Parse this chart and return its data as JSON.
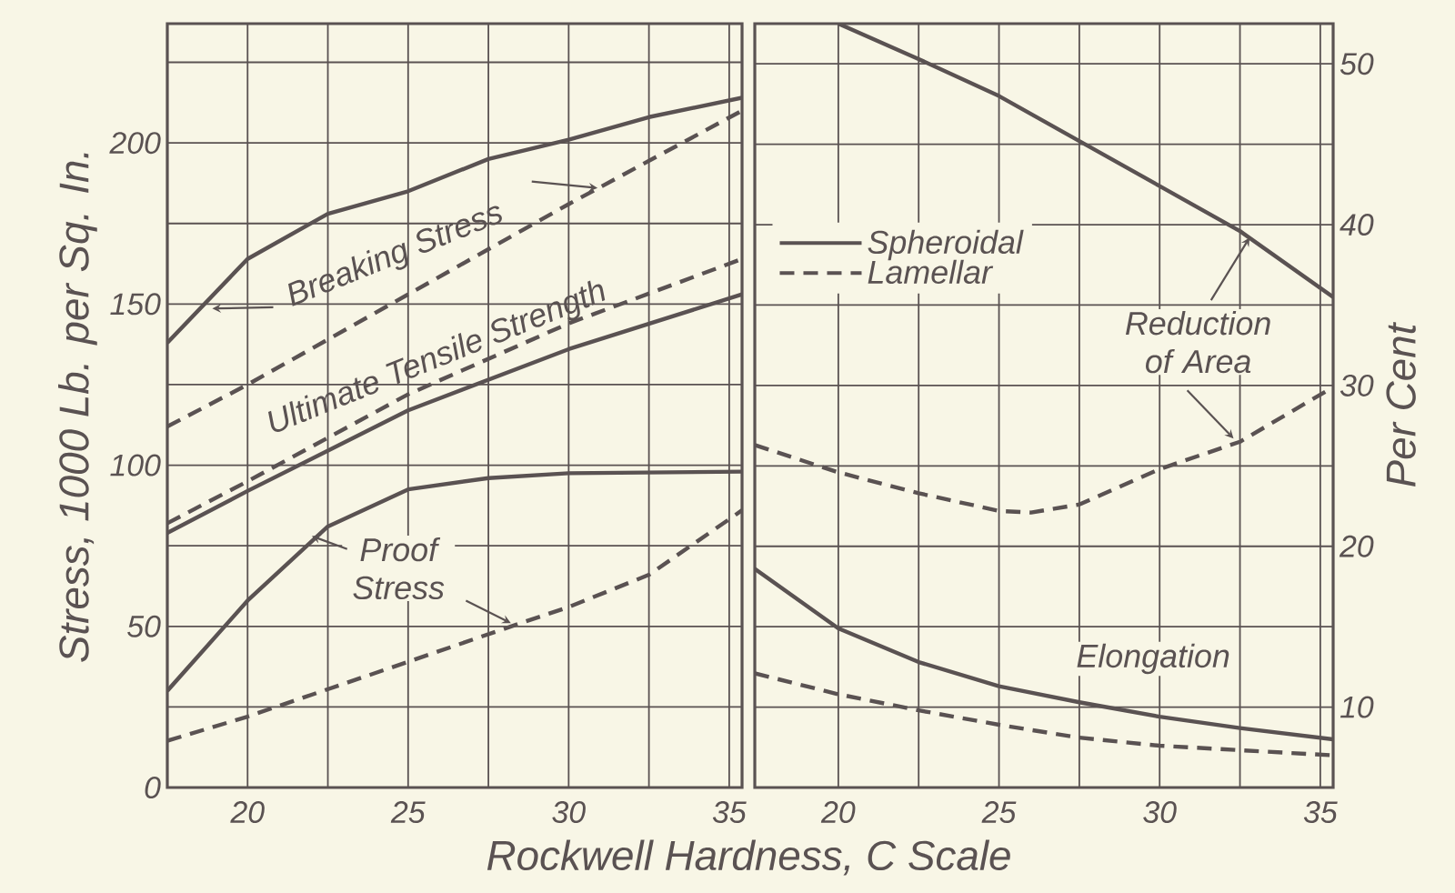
{
  "chart_data": [
    {
      "type": "line",
      "xlabel": "Rockwell Hardness, C Scale",
      "ylabel": "Stress, 1000 Lb. per Sq. In.",
      "xlim": [
        17.5,
        35.4
      ],
      "ylim": [
        0,
        237
      ],
      "xticks": [
        20,
        {
          "value": 22.5,
          "label": null
        },
        25,
        {
          "value": 27.5,
          "label": null
        },
        30,
        {
          "value": 32.5,
          "label": null
        },
        35
      ],
      "yticks": [
        0,
        {
          "value": 25,
          "label": null
        },
        50,
        {
          "value": 75,
          "label": null
        },
        100,
        {
          "value": 125,
          "label": null
        },
        150,
        {
          "value": 175,
          "label": null
        },
        200,
        {
          "value": 225,
          "label": null
        }
      ],
      "grid": true,
      "marker": "none",
      "annotations": [
        "Breaking Stress",
        "Ultimate Tensile Strength",
        "Proof Stress"
      ],
      "series": [
        {
          "color": "#5a5252",
          "line_style": "solid",
          "x": [
            17.5,
            20,
            22.5,
            25,
            27.5,
            30,
            32.5,
            35.4
          ],
          "values": [
            138,
            164,
            178,
            185,
            195,
            201,
            208,
            214
          ]
        },
        {
          "color": "#5a5252",
          "line_style": "dashed",
          "x": [
            17.5,
            20,
            25,
            30,
            35.4
          ],
          "values": [
            112,
            125,
            153,
            181,
            210
          ]
        },
        {
          "color": "#5a5252",
          "line_style": "solid",
          "x": [
            17.5,
            20,
            25,
            30,
            35.4
          ],
          "values": [
            79,
            92,
            117,
            136,
            153
          ]
        },
        {
          "color": "#5a5252",
          "line_style": "dashed",
          "x": [
            17.5,
            20,
            25,
            30,
            35.4
          ],
          "values": [
            82,
            95,
            122,
            144,
            164
          ]
        },
        {
          "color": "#5a5252",
          "line_style": "solid",
          "x": [
            17.5,
            20,
            22.5,
            25,
            27.5,
            30,
            35.4
          ],
          "values": [
            30,
            58,
            81,
            92.5,
            96,
            97.5,
            98
          ]
        },
        {
          "color": "#5a5252",
          "line_style": "dashed",
          "x": [
            17.5,
            20,
            25,
            28.5,
            30,
            32.5,
            35.4
          ],
          "values": [
            14.5,
            22,
            39,
            51,
            56,
            66,
            86
          ]
        }
      ]
    },
    {
      "type": "line",
      "ylabel": "Per Cent",
      "xlim": [
        17.4,
        35.4
      ],
      "ylim": [
        5,
        52.5
      ],
      "xticks": [
        20,
        {
          "value": 22.5,
          "label": null
        },
        25,
        {
          "value": 27.5,
          "label": null
        },
        30,
        {
          "value": 32.5,
          "label": null
        },
        35
      ],
      "yticks": [
        10,
        {
          "value": 15,
          "label": null
        },
        20,
        {
          "value": 25,
          "label": null
        },
        30,
        {
          "value": 35,
          "label": null
        },
        40,
        {
          "value": 45,
          "label": null
        },
        50
      ],
      "grid": true,
      "marker": "none",
      "legend": "left",
      "annotations": [
        "Reduction of Area",
        "Elongation"
      ],
      "series": [
        {
          "name": "Spheroidal",
          "color": "#5a5252",
          "line_style": "solid",
          "x": [
            20,
            22.5,
            25,
            27.5,
            30,
            32.5,
            35.4
          ],
          "values": [
            52.5,
            50.3,
            48,
            45.2,
            42.4,
            39.6,
            35.5
          ]
        },
        {
          "name": "Lamellar",
          "color": "#5a5252",
          "line_style": "dashed",
          "x": [
            17.4,
            20,
            22.5,
            25,
            26,
            27.5,
            30,
            32.5,
            35.4
          ],
          "values": [
            26.3,
            24.6,
            23.3,
            22.2,
            22.1,
            22.6,
            24.8,
            26.5,
            29.9
          ]
        },
        {
          "color": "#5a5252",
          "line_style": "solid",
          "x": [
            17.4,
            20,
            22.5,
            25,
            27.5,
            30,
            32.5,
            35.4
          ],
          "values": [
            18.6,
            14.9,
            12.8,
            11.3,
            10.3,
            9.4,
            8.7,
            8.0
          ]
        },
        {
          "color": "#5a5252",
          "line_style": "dashed",
          "x": [
            17.4,
            20,
            22.5,
            25,
            27.5,
            30,
            35.4
          ],
          "values": [
            12.1,
            10.8,
            9.8,
            8.9,
            8.1,
            7.6,
            7.0
          ]
        }
      ]
    }
  ]
}
